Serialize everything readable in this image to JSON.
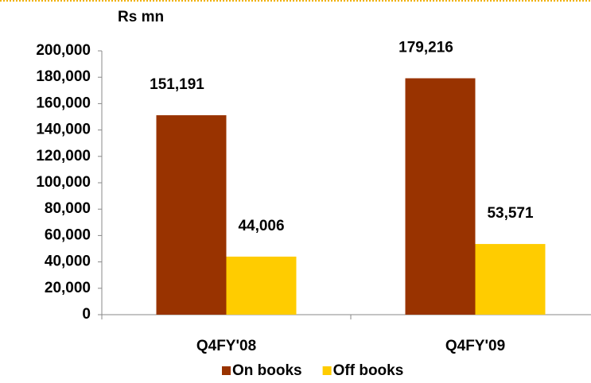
{
  "chart_data": {
    "type": "bar",
    "y_label": "Rs mn",
    "categories": [
      "Q4FY'08",
      "Q4FY'09"
    ],
    "series": [
      {
        "name": "On books",
        "color": "#993300",
        "values": [
          151191,
          179216
        ],
        "value_labels": [
          "151,191",
          "179,216"
        ]
      },
      {
        "name": "Off books",
        "color": "#ffcc00",
        "values": [
          44006,
          53571
        ],
        "value_labels": [
          "44,006",
          "53,571"
        ]
      }
    ],
    "ylim": [
      0,
      200000
    ],
    "yticks": [
      0,
      {
        "value": 20000,
        "label": "20,000"
      },
      {
        "value": 40000,
        "label": "40,000"
      },
      {
        "value": 60000,
        "label": "60,000"
      },
      {
        "value": 80000,
        "label": "80,000"
      },
      {
        "value": 100000,
        "label": "100,000"
      },
      {
        "value": 120000,
        "label": "120,000"
      },
      {
        "value": 140000,
        "label": "140,000"
      },
      {
        "value": 160000,
        "label": "160,000"
      },
      {
        "value": 180000,
        "label": "180,000"
      },
      {
        "value": 200000,
        "label": "200,000"
      }
    ],
    "grid": false,
    "legend": "bottom"
  }
}
